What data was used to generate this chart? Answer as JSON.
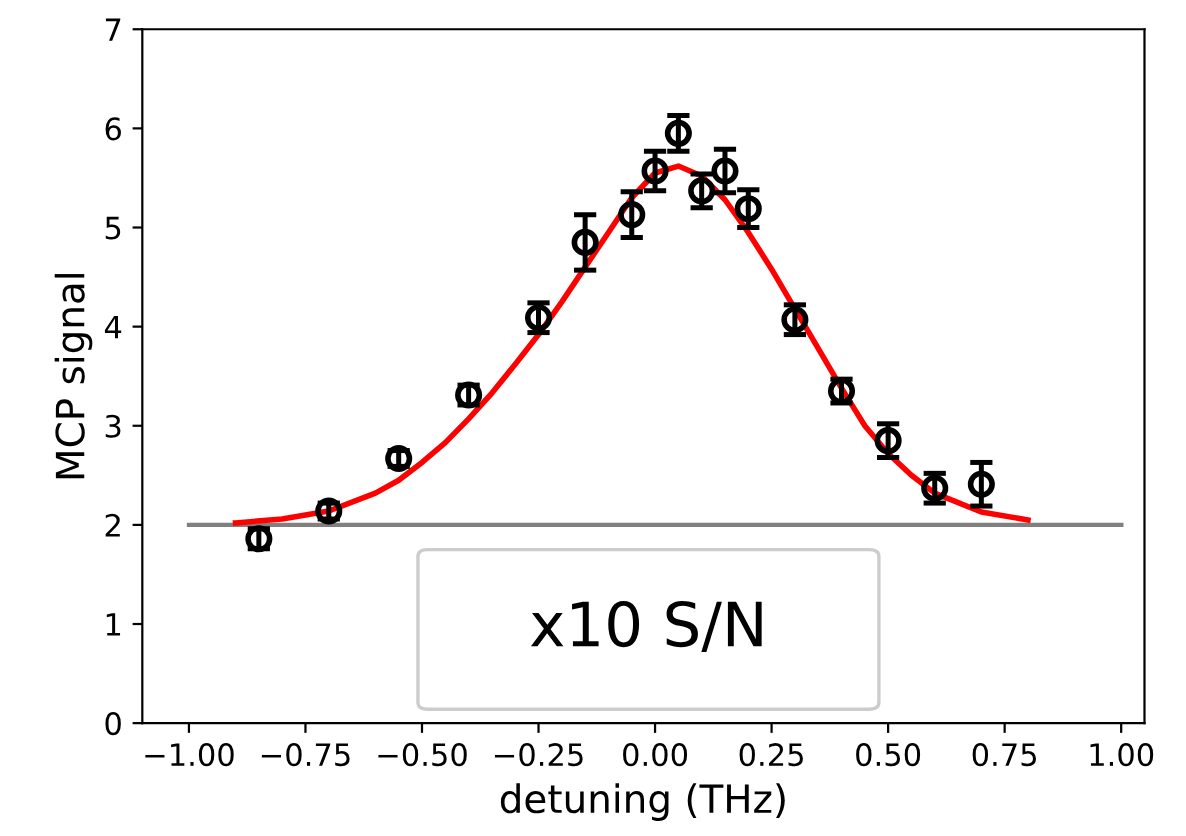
{
  "chart_data": {
    "type": "scatter",
    "xlabel": "detuning (THz)",
    "ylabel": "MCP signal",
    "xlim": [
      -1.1,
      1.05
    ],
    "xticks": [
      {
        "value": -1,
        "label": "−1.00"
      },
      {
        "value": -0.75,
        "label": "−0.75"
      },
      {
        "value": -0.5,
        "label": "−0.50"
      },
      {
        "value": -0.25,
        "label": "−0.25"
      },
      {
        "value": 0,
        "label": "0.00"
      },
      {
        "value": 0.25,
        "label": "0.25"
      },
      {
        "value": 0.5,
        "label": "0.50"
      },
      {
        "value": 0.75,
        "label": "0.75"
      },
      {
        "value": 1,
        "label": "1.00"
      }
    ],
    "ylim": [
      0,
      7
    ],
    "yticks": [
      0,
      1,
      2,
      3,
      4,
      5,
      6,
      7
    ],
    "grid": false,
    "legend": false,
    "series": [
      {
        "color": "#000000",
        "marker": "circle",
        "x": [
          -0.85,
          -0.7,
          -0.55,
          -0.4,
          -0.25,
          -0.15,
          -0.05,
          0.0,
          0.05,
          0.1,
          0.15,
          0.2,
          0.3,
          0.4,
          0.5,
          0.6,
          0.7
        ],
        "values": [
          1.86,
          2.14,
          2.67,
          3.31,
          4.09,
          4.85,
          5.13,
          5.57,
          5.95,
          5.37,
          5.57,
          5.19,
          4.07,
          3.35,
          2.85,
          2.37,
          2.41
        ],
        "errors": [
          0.1,
          0.08,
          0.08,
          0.1,
          0.15,
          0.28,
          0.23,
          0.2,
          0.18,
          0.17,
          0.22,
          0.19,
          0.15,
          0.12,
          0.17,
          0.15,
          0.22
        ]
      },
      {
        "type": "line",
        "color": "#ff0000",
        "marker": "none",
        "x": [
          -0.9,
          -0.8,
          -0.7,
          -0.6,
          -0.55,
          -0.5,
          -0.45,
          -0.4,
          -0.35,
          -0.3,
          -0.25,
          -0.2,
          -0.15,
          -0.1,
          -0.05,
          0.0,
          0.05,
          0.1,
          0.15,
          0.2,
          0.25,
          0.3,
          0.35,
          0.4,
          0.45,
          0.5,
          0.55,
          0.6,
          0.7,
          0.8
        ],
        "values": [
          2.02,
          2.06,
          2.14,
          2.32,
          2.45,
          2.63,
          2.83,
          3.07,
          3.33,
          3.62,
          3.92,
          4.25,
          4.6,
          4.95,
          5.3,
          5.55,
          5.62,
          5.52,
          5.28,
          4.95,
          4.58,
          4.18,
          3.78,
          3.38,
          3.0,
          2.72,
          2.5,
          2.32,
          2.13,
          2.05
        ]
      }
    ],
    "ref_lines": [
      {
        "axis": "y",
        "value": 2,
        "color": "#808080",
        "line_style": "solid"
      }
    ],
    "annotations": [
      "x10 S/N"
    ]
  }
}
